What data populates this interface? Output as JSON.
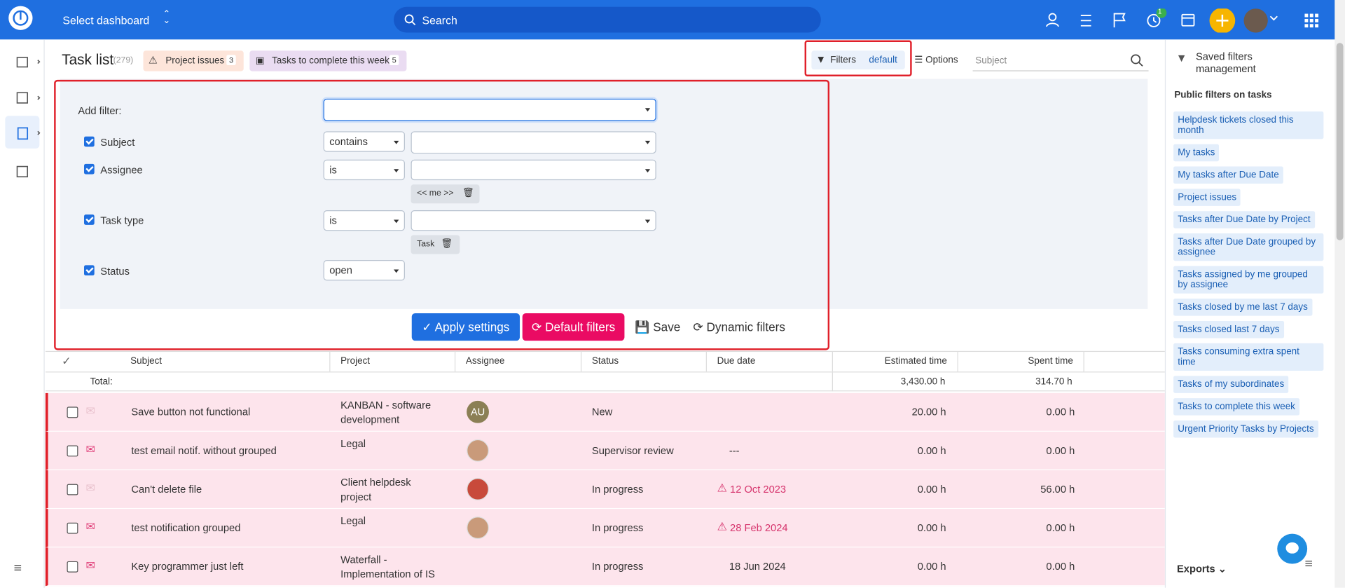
{
  "topbar": {
    "dashboard": "Select dashboard",
    "search": "Search",
    "timer_badge": "1"
  },
  "page": {
    "title": "Task list",
    "count": "(279)",
    "tabs": [
      {
        "label": "Project issues",
        "count": "3"
      },
      {
        "label": "Tasks to complete this week",
        "count": "5"
      }
    ],
    "filters_button": "Filters",
    "filters_default": "default",
    "options": "Options",
    "subject_placeholder": "Subject"
  },
  "filter_panel": {
    "add_filter": "Add filter:",
    "rows": [
      {
        "label": "Subject",
        "operator": "contains"
      },
      {
        "label": "Assignee",
        "operator": "is",
        "tag": "<< me >>"
      },
      {
        "label": "Task type",
        "operator": "is",
        "tag": "Task"
      },
      {
        "label": "Status",
        "operator": "open"
      }
    ],
    "buttons": [
      "Apply settings",
      "Default filters",
      "Save",
      "Dynamic filters"
    ]
  },
  "table": {
    "columns": [
      "Subject",
      "Project",
      "Assignee",
      "Status",
      "Due date",
      "Estimated time",
      "Spent time"
    ],
    "total_label": "Total:",
    "totals": {
      "estimated": "3,430.00 h",
      "spent": "314.70 h"
    },
    "rows": [
      {
        "subject": "Save button not functional",
        "project": "KANBAN - software development",
        "assignee": "AU",
        "status": "New",
        "estimated": "20.00 h",
        "spent": "0.00 h"
      },
      {
        "subject": "test email notif. without grouped",
        "project": "Legal",
        "status": "Supervisor review",
        "due": "---",
        "estimated": "0.00 h",
        "spent": "0.00 h"
      },
      {
        "subject": "Can't delete file",
        "project": "Client helpdesk project",
        "status": "In progress",
        "due": "12 Oct 2023",
        "overdue": true,
        "estimated": "0.00 h",
        "spent": "56.00 h"
      },
      {
        "subject": "test notification grouped",
        "project": "Legal",
        "status": "In progress",
        "due": "28 Feb 2024",
        "overdue": true,
        "estimated": "0.00 h",
        "spent": "0.00 h"
      },
      {
        "subject": "Key programmer just left",
        "project": "Waterfall - Implementation of IS",
        "status": "In progress",
        "due": "18 Jun 2024",
        "estimated": "0.00 h",
        "spent": "0.00 h"
      }
    ]
  },
  "sidebar": {
    "title": "Saved filters management",
    "section": "Public filters on tasks",
    "filters": [
      "Helpdesk tickets closed this month",
      "My tasks",
      "My tasks after Due Date",
      "Project issues",
      "Tasks after Due Date by Project",
      "Tasks after Due Date grouped by assignee",
      "Tasks assigned by me grouped by assignee",
      "Tasks closed by me last 7 days",
      "Tasks closed last 7 days",
      "Tasks consuming extra spent time",
      "Tasks of my subordinates",
      "Tasks to complete this week",
      "Urgent Priority Tasks by Projects"
    ],
    "exports": "Exports"
  }
}
